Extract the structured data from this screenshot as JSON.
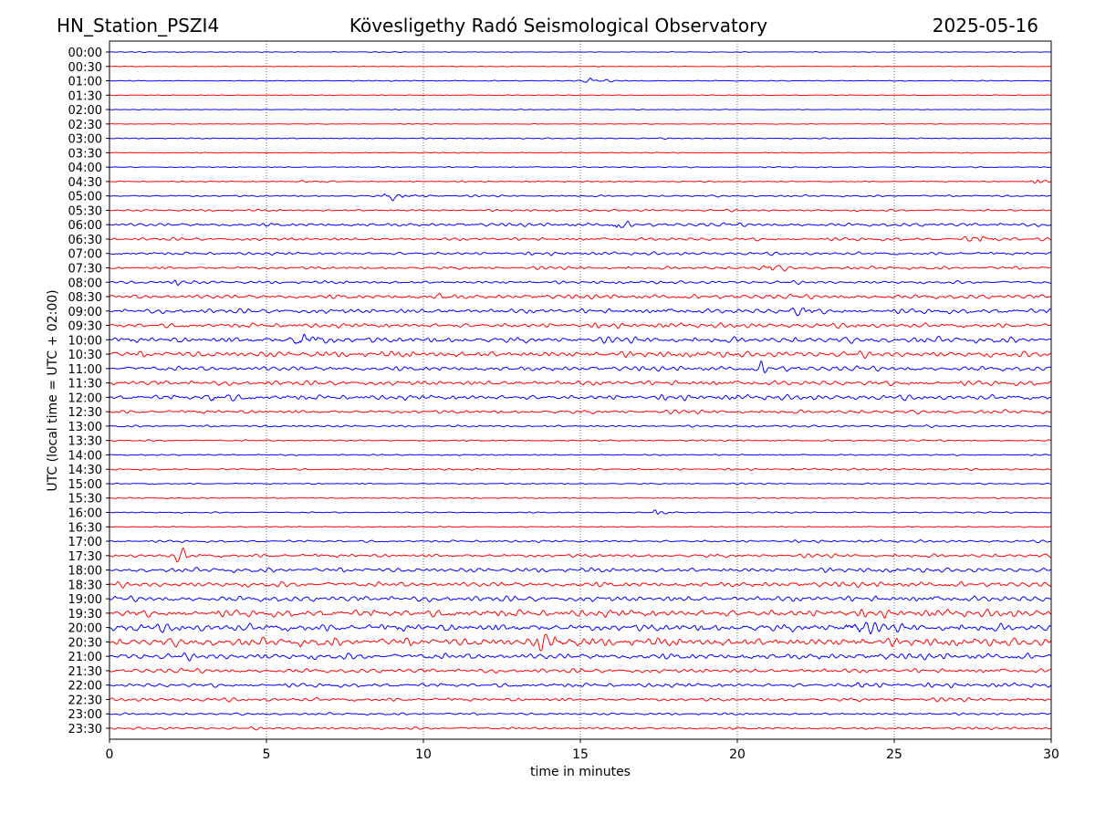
{
  "header": {
    "station": "HN_Station_PSZI4",
    "title": "Kövesligethy Radó Seismological Observatory",
    "date": "2025-05-16"
  },
  "chart_data": {
    "type": "line",
    "title": "Kövesligethy Radó Seismological Observatory",
    "xlabel": "time in minutes",
    "ylabel": "UTC (local time = UTC + 02:00)",
    "xlim": [
      0,
      30
    ],
    "x_ticks": [
      "0",
      "5",
      "10",
      "15",
      "20",
      "25",
      "30"
    ],
    "x_tick_values": [
      0,
      5,
      10,
      15,
      20,
      25,
      30
    ],
    "grid": "vertical dotted at x ticks",
    "colors": [
      "#0000ff",
      "#ff0000"
    ],
    "rows": [
      "00:00",
      "00:30",
      "01:00",
      "01:30",
      "02:00",
      "02:30",
      "03:00",
      "03:30",
      "04:00",
      "04:30",
      "05:00",
      "05:30",
      "06:00",
      "06:30",
      "07:00",
      "07:30",
      "08:00",
      "08:30",
      "09:00",
      "09:30",
      "10:00",
      "10:30",
      "11:00",
      "11:30",
      "12:00",
      "12:30",
      "13:00",
      "13:30",
      "14:00",
      "14:30",
      "15:00",
      "15:30",
      "16:00",
      "16:30",
      "17:00",
      "17:30",
      "18:00",
      "18:30",
      "19:00",
      "19:30",
      "20:00",
      "20:30",
      "21:00",
      "21:30",
      "22:00",
      "22:30",
      "23:00",
      "23:30"
    ],
    "noise_level": [
      0.3,
      0.3,
      0.4,
      0.35,
      0.3,
      0.3,
      0.5,
      0.4,
      0.5,
      0.5,
      0.8,
      0.9,
      1.6,
      1.4,
      1.3,
      1.3,
      1.3,
      2.0,
      2.2,
      2.0,
      2.6,
      2.6,
      2.2,
      2.2,
      2.2,
      1.6,
      0.9,
      0.7,
      0.6,
      0.8,
      0.6,
      0.5,
      0.6,
      0.5,
      1.0,
      1.6,
      2.0,
      2.4,
      2.6,
      3.2,
      3.4,
      3.6,
      2.8,
      2.0,
      1.8,
      1.6,
      1.0,
      1.1
    ],
    "events": [
      {
        "row": 2,
        "minute": 15.3,
        "amp": 2.0,
        "width": 0.5
      },
      {
        "row": 9,
        "minute": 6.3,
        "amp": 2.0,
        "width": 0.4
      },
      {
        "row": 9,
        "minute": 29.5,
        "amp": 2.5,
        "width": 0.3
      },
      {
        "row": 10,
        "minute": 9.0,
        "amp": 4.0,
        "width": 0.5
      },
      {
        "row": 12,
        "minute": 16.2,
        "amp": 4.0,
        "width": 0.3
      },
      {
        "row": 13,
        "minute": 27.5,
        "amp": 3.0,
        "width": 0.6
      },
      {
        "row": 15,
        "minute": 20.9,
        "amp": 4.0,
        "width": 0.4
      },
      {
        "row": 16,
        "minute": 2.1,
        "amp": 6.0,
        "width": 0.2
      },
      {
        "row": 17,
        "minute": 10.5,
        "amp": 4.0,
        "width": 0.2
      },
      {
        "row": 18,
        "minute": 21.8,
        "amp": 7.0,
        "width": 0.2
      },
      {
        "row": 20,
        "minute": 6.0,
        "amp": 10.0,
        "width": 0.4
      },
      {
        "row": 22,
        "minute": 20.8,
        "amp": 6.0,
        "width": 0.3
      },
      {
        "row": 24,
        "minute": 3.3,
        "amp": 6.0,
        "width": 0.3
      },
      {
        "row": 32,
        "minute": 17.4,
        "amp": 4.0,
        "width": 0.2
      },
      {
        "row": 35,
        "minute": 2.2,
        "amp": 10.0,
        "width": 0.2
      },
      {
        "row": 40,
        "minute": 23.6,
        "amp": 10.0,
        "width": 0.3
      },
      {
        "row": 41,
        "minute": 13.8,
        "amp": 9.0,
        "width": 0.4
      },
      {
        "row": 44,
        "minute": 23.8,
        "amp": 3.0,
        "width": 0.4
      }
    ]
  }
}
